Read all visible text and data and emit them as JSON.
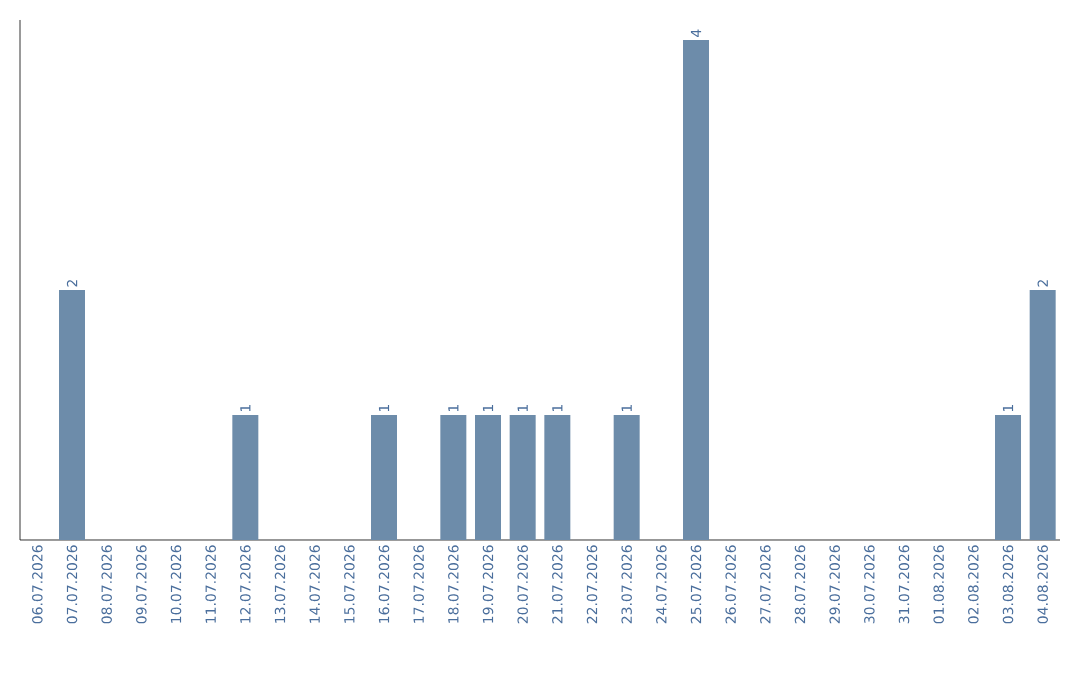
{
  "chart_data": {
    "type": "bar",
    "color": "#6d8caa",
    "categories": [
      "06.07.2026",
      "07.07.2026",
      "08.07.2026",
      "09.07.2026",
      "10.07.2026",
      "11.07.2026",
      "12.07.2026",
      "13.07.2026",
      "14.07.2026",
      "15.07.2026",
      "16.07.2026",
      "17.07.2026",
      "18.07.2026",
      "19.07.2026",
      "20.07.2026",
      "21.07.2026",
      "22.07.2026",
      "23.07.2026",
      "24.07.2026",
      "25.07.2026",
      "26.07.2026",
      "27.07.2026",
      "28.07.2026",
      "29.07.2026",
      "30.07.2026",
      "31.07.2026",
      "01.08.2026",
      "02.08.2026",
      "03.08.2026",
      "04.08.2026"
    ],
    "values": [
      0,
      2,
      0,
      0,
      0,
      0,
      1,
      0,
      0,
      0,
      1,
      0,
      1,
      1,
      1,
      1,
      0,
      1,
      0,
      4,
      0,
      0,
      0,
      0,
      0,
      0,
      0,
      0,
      1,
      2
    ],
    "value_labels": [
      null,
      "2",
      null,
      null,
      null,
      null,
      "1",
      null,
      null,
      null,
      "1",
      null,
      "1",
      "1",
      "1",
      "1",
      null,
      "1",
      null,
      "4",
      null,
      null,
      null,
      null,
      null,
      null,
      null,
      null,
      "1",
      "2"
    ],
    "tick_labels": "x"
  }
}
